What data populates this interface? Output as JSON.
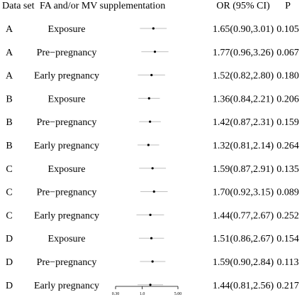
{
  "chart_data": {
    "type": "forest",
    "columns": {
      "dataset": "Data set",
      "supplement": "FA and/or MV supplementation",
      "or": "OR (95% CI)",
      "p": "P"
    },
    "x_scale": "log",
    "xlim": [
      0.3,
      5.0
    ],
    "x_ticks": [
      {
        "value": 0.3,
        "label": "0.30"
      },
      {
        "value": 1.0,
        "label": "1.0"
      },
      {
        "value": 5.0,
        "label": "5.00"
      }
    ],
    "rows": [
      {
        "dataset": "A",
        "exposure": "Exposure",
        "or": 1.65,
        "lo": 0.9,
        "hi": 3.01,
        "or_text": "1.65(0.90,3.01)",
        "p": "0.105"
      },
      {
        "dataset": "A",
        "exposure": "Pre−pregnancy",
        "or": 1.77,
        "lo": 0.96,
        "hi": 3.26,
        "or_text": "1.77(0.96,3.26)",
        "p": "0.067"
      },
      {
        "dataset": "A",
        "exposure": "Early pregnancy",
        "or": 1.52,
        "lo": 0.82,
        "hi": 2.8,
        "or_text": "1.52(0.82,2.80)",
        "p": "0.180"
      },
      {
        "dataset": "B",
        "exposure": "Exposure",
        "or": 1.36,
        "lo": 0.84,
        "hi": 2.21,
        "or_text": "1.36(0.84,2.21)",
        "p": "0.206"
      },
      {
        "dataset": "B",
        "exposure": "Pre−pregnancy",
        "or": 1.42,
        "lo": 0.87,
        "hi": 2.31,
        "or_text": "1.42(0.87,2.31)",
        "p": "0.159"
      },
      {
        "dataset": "B",
        "exposure": "Early pregnancy",
        "or": 1.32,
        "lo": 0.81,
        "hi": 2.14,
        "or_text": "1.32(0.81,2.14)",
        "p": "0.264"
      },
      {
        "dataset": "C",
        "exposure": "Exposure",
        "or": 1.59,
        "lo": 0.87,
        "hi": 2.91,
        "or_text": "1.59(0.87,2.91)",
        "p": "0.135"
      },
      {
        "dataset": "C",
        "exposure": "Pre−pregnancy",
        "or": 1.7,
        "lo": 0.92,
        "hi": 3.15,
        "or_text": "1.70(0.92,3.15)",
        "p": "0.089"
      },
      {
        "dataset": "C",
        "exposure": "Early pregnancy",
        "or": 1.44,
        "lo": 0.77,
        "hi": 2.67,
        "or_text": "1.44(0.77,2.67)",
        "p": "0.252"
      },
      {
        "dataset": "D",
        "exposure": "Exposure",
        "or": 1.51,
        "lo": 0.86,
        "hi": 2.67,
        "or_text": "1.51(0.86,2.67)",
        "p": "0.154"
      },
      {
        "dataset": "D",
        "exposure": "Pre−pregnancy",
        "or": 1.59,
        "lo": 0.9,
        "hi": 2.84,
        "or_text": "1.59(0.90,2.84)",
        "p": "0.113"
      },
      {
        "dataset": "D",
        "exposure": "Early pregnancy",
        "or": 1.44,
        "lo": 0.81,
        "hi": 2.56,
        "or_text": "1.44(0.81,2.56)",
        "p": "0.217"
      }
    ],
    "colors": {
      "ci_line": "#bdbdbd",
      "point": "#000000",
      "axis": "#000000"
    }
  }
}
